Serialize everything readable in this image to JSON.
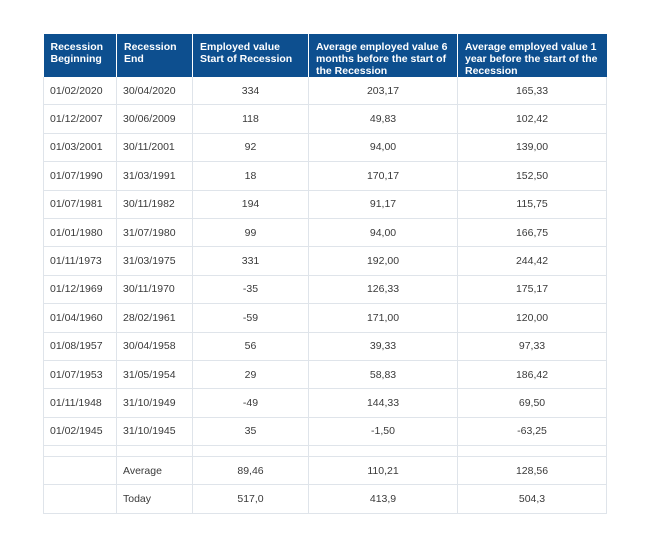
{
  "headers": [
    "Recession Beginning",
    "Recession End",
    "Employed value Start of Recession",
    "Average employed value 6 months before the start of the Recession",
    "Average employed value 1 year before the start of the Recession"
  ],
  "rows": [
    [
      "01/02/2020",
      "30/04/2020",
      "334",
      "203,17",
      "165,33"
    ],
    [
      "01/12/2007",
      "30/06/2009",
      "118",
      "49,83",
      "102,42"
    ],
    [
      "01/03/2001",
      "30/11/2001",
      "92",
      "94,00",
      "139,00"
    ],
    [
      "01/07/1990",
      "31/03/1991",
      "18",
      "170,17",
      "152,50"
    ],
    [
      "01/07/1981",
      "30/11/1982",
      "194",
      "91,17",
      "115,75"
    ],
    [
      "01/01/1980",
      "31/07/1980",
      "99",
      "94,00",
      "166,75"
    ],
    [
      "01/11/1973",
      "31/03/1975",
      "331",
      "192,00",
      "244,42"
    ],
    [
      "01/12/1969",
      "30/11/1970",
      "-35",
      "126,33",
      "175,17"
    ],
    [
      "01/04/1960",
      "28/02/1961",
      "-59",
      "171,00",
      "120,00"
    ],
    [
      "01/08/1957",
      "30/04/1958",
      "56",
      "39,33",
      "97,33"
    ],
    [
      "01/07/1953",
      "31/05/1954",
      "29",
      "58,83",
      "186,42"
    ],
    [
      "01/11/1948",
      "31/10/1949",
      "-49",
      "144,33",
      "69,50"
    ],
    [
      "01/02/1945",
      "31/10/1945",
      "35",
      "-1,50",
      "-63,25"
    ]
  ],
  "summary": [
    [
      "",
      "Average",
      "89,46",
      "110,21",
      "128,56"
    ],
    [
      "",
      "Today",
      "517,0",
      "413,9",
      "504,3"
    ]
  ],
  "colors": {
    "header_bg": "#0d4f8f",
    "header_text": "#ffffff",
    "grid_line": "#dfe4ea",
    "body_text": "#3a3a3a"
  }
}
